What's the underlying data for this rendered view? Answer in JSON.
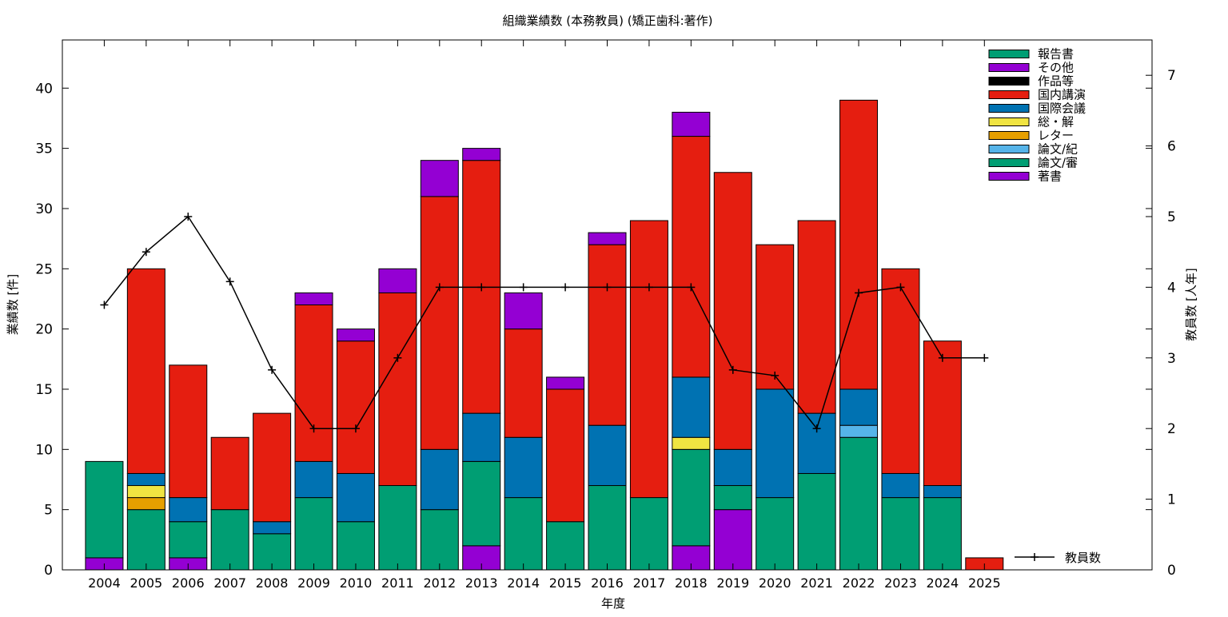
{
  "chart_data": {
    "type": "bar",
    "title": "組織業績数 (本務教員) (矯正歯科:著作)",
    "xlabel": "年度",
    "ylabel": "業績数 [件]",
    "y2label": "教員数 [人年]",
    "ylim": [
      0,
      44
    ],
    "y2lim": [
      0,
      7.5
    ],
    "yticks": [
      0,
      5,
      10,
      15,
      20,
      25,
      30,
      35,
      40
    ],
    "y2ticks": [
      0,
      1,
      2,
      3,
      4,
      5,
      6,
      7
    ],
    "grid": false,
    "legend_position": "top-right",
    "categories": [
      "2004",
      "2005",
      "2006",
      "2007",
      "2008",
      "2009",
      "2010",
      "2011",
      "2012",
      "2013",
      "2014",
      "2015",
      "2016",
      "2017",
      "2018",
      "2019",
      "2020",
      "2021",
      "2022",
      "2023",
      "2024",
      "2025"
    ],
    "series": [
      {
        "name": "著書",
        "color": "#9400d3",
        "values": [
          1,
          0,
          1,
          0,
          0,
          0,
          0,
          0,
          0,
          2,
          0,
          0,
          0,
          0,
          2,
          5,
          0,
          0,
          0,
          0,
          0,
          0
        ]
      },
      {
        "name": "論文/審",
        "color": "#009e73",
        "values": [
          8,
          5,
          3,
          5,
          3,
          6,
          4,
          7,
          5,
          7,
          6,
          4,
          7,
          6,
          8,
          2,
          6,
          8,
          11,
          6,
          6,
          0
        ]
      },
      {
        "name": "論文/紀",
        "color": "#56b4e9",
        "values": [
          0,
          0,
          0,
          0,
          0,
          0,
          0,
          0,
          0,
          0,
          0,
          0,
          0,
          0,
          0,
          0,
          0,
          0,
          1,
          0,
          0,
          0
        ]
      },
      {
        "name": "レター",
        "color": "#e69f00",
        "values": [
          0,
          1,
          0,
          0,
          0,
          0,
          0,
          0,
          0,
          0,
          0,
          0,
          0,
          0,
          0,
          0,
          0,
          0,
          0,
          0,
          0,
          0
        ]
      },
      {
        "name": "総・解",
        "color": "#f0e442",
        "values": [
          0,
          1,
          0,
          0,
          0,
          0,
          0,
          0,
          0,
          0,
          0,
          0,
          0,
          0,
          1,
          0,
          0,
          0,
          0,
          0,
          0,
          0
        ]
      },
      {
        "name": "国際会議",
        "color": "#0072b2",
        "values": [
          0,
          1,
          2,
          0,
          1,
          3,
          4,
          0,
          5,
          4,
          5,
          0,
          5,
          0,
          5,
          3,
          9,
          5,
          3,
          2,
          1,
          0
        ]
      },
      {
        "name": "国内講演",
        "color": "#e51e10",
        "values": [
          0,
          17,
          11,
          6,
          9,
          13,
          11,
          16,
          21,
          21,
          9,
          11,
          15,
          23,
          20,
          23,
          12,
          16,
          24,
          17,
          12,
          1
        ]
      },
      {
        "name": "作品等",
        "color": "#000000",
        "values": [
          0,
          0,
          0,
          0,
          0,
          0,
          0,
          0,
          0,
          0,
          0,
          0,
          0,
          0,
          0,
          0,
          0,
          0,
          0,
          0,
          0,
          0
        ]
      },
      {
        "name": "その他",
        "color": "#9400d3",
        "values": [
          0,
          0,
          0,
          0,
          0,
          1,
          1,
          2,
          3,
          1,
          3,
          1,
          1,
          0,
          2,
          0,
          0,
          0,
          0,
          0,
          0,
          0
        ]
      },
      {
        "name": "報告書",
        "color": "#009e73",
        "values": [
          0,
          0,
          0,
          0,
          0,
          0,
          0,
          0,
          0,
          0,
          0,
          0,
          0,
          0,
          0,
          0,
          0,
          0,
          0,
          0,
          0,
          0
        ]
      }
    ],
    "line": {
      "name": "教員数",
      "color": "#000000",
      "values": [
        3.75,
        4.5,
        5.0,
        4.08,
        2.83,
        2.0,
        2.0,
        3.0,
        4.0,
        4.0,
        4.0,
        4.0,
        4.0,
        4.0,
        4.0,
        2.83,
        2.75,
        2.0,
        3.92,
        4.0,
        3.0,
        3.0
      ]
    },
    "legend_order": [
      "報告書",
      "その他",
      "作品等",
      "国内講演",
      "国際会議",
      "総・解",
      "レター",
      "論文/紀",
      "論文/審",
      "著書"
    ]
  }
}
